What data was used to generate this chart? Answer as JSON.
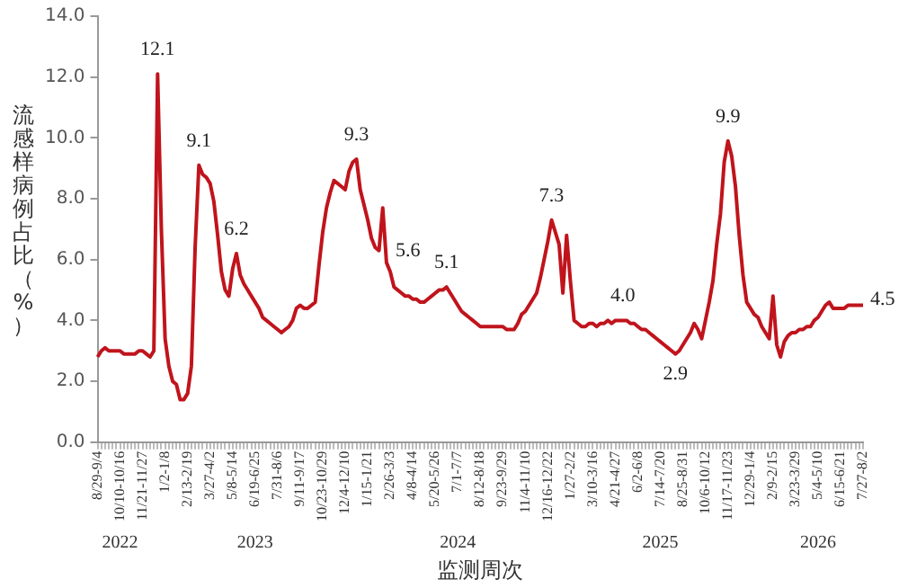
{
  "chart_data": {
    "type": "line",
    "xlabel": "监测周次",
    "ylabel": "流感样病例占比（%）",
    "categories": [
      "8/29-9/4",
      null,
      null,
      null,
      null,
      null,
      "10/10-10/16",
      null,
      null,
      null,
      null,
      null,
      "11/21-11/27",
      null,
      null,
      null,
      null,
      null,
      "1/2-1/8",
      null,
      null,
      null,
      null,
      null,
      "2/13-2/19",
      null,
      null,
      null,
      null,
      null,
      "3/27-4/2",
      null,
      null,
      null,
      null,
      null,
      "5/8-5/14",
      null,
      null,
      null,
      null,
      null,
      "6/19-6/25",
      null,
      null,
      null,
      null,
      null,
      "7/31-8/6",
      null,
      null,
      null,
      null,
      null,
      "9/11-9/17",
      null,
      null,
      null,
      null,
      null,
      "10/23-10/29",
      null,
      null,
      null,
      null,
      null,
      "12/4-12/10",
      null,
      null,
      null,
      null,
      null,
      "1/15-1/21",
      null,
      null,
      null,
      null,
      null,
      "2/26-3/3",
      null,
      null,
      null,
      null,
      null,
      "4/8-4/14",
      null,
      null,
      null,
      null,
      null,
      "5/20-5/26",
      null,
      null,
      null,
      null,
      null,
      "7/1-7/7",
      null,
      null,
      null,
      null,
      null,
      "8/12-8/18",
      null,
      null,
      null,
      null,
      null,
      "9/23-9/29",
      null,
      null,
      null,
      null,
      null,
      "11/4-11/10",
      null,
      null,
      null,
      null,
      null,
      "12/16-12/22",
      null,
      null,
      null,
      null,
      null,
      "1/27-2/2",
      null,
      null,
      null,
      null,
      null,
      "3/10-3/16",
      null,
      null,
      null,
      null,
      null,
      "4/21-4/27",
      null,
      null,
      null,
      null,
      null,
      "6/2-6/8",
      null,
      null,
      null,
      null,
      null,
      "7/14-7/20",
      null,
      null,
      null,
      null,
      null,
      "8/25-8/31",
      null,
      null,
      null,
      null,
      null,
      "10/6-10/12",
      null,
      null,
      null,
      null,
      null,
      "11/17-11/23",
      null,
      null,
      null,
      null,
      null,
      "12/29-1/4",
      null,
      null,
      null,
      null,
      null,
      "2/9-2/15",
      null,
      null,
      null,
      null,
      null,
      "3/23-3/29",
      null,
      null,
      null,
      null,
      null,
      "5/4-5/10",
      null,
      null,
      null,
      null,
      null,
      "6/15-6/21",
      null,
      null,
      null,
      null,
      null,
      "7/27-8/2"
    ],
    "values": [
      2.8,
      3.0,
      3.1,
      3.0,
      3.0,
      3.0,
      3.0,
      2.9,
      2.9,
      2.9,
      2.9,
      3.0,
      3.0,
      2.9,
      2.8,
      3.0,
      12.1,
      7.0,
      3.4,
      2.5,
      2.0,
      1.9,
      1.4,
      1.4,
      1.6,
      2.5,
      6.4,
      9.1,
      8.8,
      8.7,
      8.5,
      7.9,
      6.8,
      5.6,
      5.0,
      4.8,
      5.7,
      6.2,
      5.5,
      5.2,
      5.0,
      4.8,
      4.6,
      4.4,
      4.1,
      4.0,
      3.9,
      3.8,
      3.7,
      3.6,
      3.7,
      3.8,
      4.0,
      4.4,
      4.5,
      4.4,
      4.4,
      4.5,
      4.6,
      5.8,
      6.9,
      7.7,
      8.2,
      8.6,
      8.5,
      8.4,
      8.3,
      8.9,
      9.2,
      9.3,
      8.3,
      7.8,
      7.3,
      6.7,
      6.4,
      6.3,
      7.7,
      5.9,
      5.6,
      5.1,
      5.0,
      4.9,
      4.8,
      4.8,
      4.7,
      4.7,
      4.6,
      4.6,
      4.7,
      4.8,
      4.9,
      5.0,
      5.0,
      5.1,
      4.9,
      4.7,
      4.5,
      4.3,
      4.2,
      4.1,
      4.0,
      3.9,
      3.8,
      3.8,
      3.8,
      3.8,
      3.8,
      3.8,
      3.8,
      3.7,
      3.7,
      3.7,
      3.9,
      4.2,
      4.3,
      4.5,
      4.7,
      4.9,
      5.4,
      6.0,
      6.6,
      7.3,
      6.9,
      6.5,
      4.9,
      6.8,
      5.3,
      4.0,
      3.9,
      3.8,
      3.8,
      3.9,
      3.9,
      3.8,
      3.9,
      3.9,
      4.0,
      3.9,
      4.0,
      4.0,
      4.0,
      4.0,
      3.9,
      3.9,
      3.8,
      3.7,
      3.7,
      3.6,
      3.5,
      3.4,
      3.3,
      3.2,
      3.1,
      3.0,
      2.9,
      3.0,
      3.2,
      3.4,
      3.6,
      3.9,
      3.7,
      3.4,
      4.0,
      4.6,
      5.3,
      6.5,
      7.5,
      9.2,
      9.9,
      9.4,
      8.4,
      6.8,
      5.5,
      4.6,
      4.4,
      4.2,
      4.1,
      3.8,
      3.6,
      3.4,
      4.8,
      3.2,
      2.8,
      3.3,
      3.5,
      3.6,
      3.6,
      3.7,
      3.7,
      3.8,
      3.8,
      4.0,
      4.1,
      4.3,
      4.5,
      4.6,
      4.4,
      4.4,
      4.4,
      4.4,
      4.5,
      4.5,
      4.5,
      4.5,
      4.5
    ],
    "value_labels": [
      null,
      null,
      null,
      null,
      null,
      null,
      null,
      null,
      null,
      null,
      null,
      null,
      null,
      null,
      null,
      null,
      "12.1",
      null,
      null,
      null,
      null,
      null,
      null,
      null,
      null,
      null,
      null,
      "9.1",
      null,
      null,
      null,
      null,
      null,
      null,
      null,
      null,
      null,
      "6.2",
      null,
      null,
      null,
      null,
      null,
      null,
      null,
      null,
      null,
      null,
      null,
      null,
      null,
      null,
      null,
      null,
      null,
      null,
      null,
      null,
      null,
      null,
      null,
      null,
      null,
      null,
      null,
      null,
      null,
      null,
      null,
      "9.3",
      null,
      null,
      null,
      null,
      null,
      null,
      null,
      null,
      "5.6",
      null,
      null,
      null,
      null,
      null,
      null,
      null,
      null,
      null,
      null,
      null,
      null,
      null,
      null,
      "5.1",
      null,
      null,
      null,
      null,
      null,
      null,
      null,
      null,
      null,
      null,
      null,
      null,
      null,
      null,
      null,
      null,
      null,
      null,
      null,
      null,
      null,
      null,
      null,
      null,
      null,
      null,
      null,
      "7.3",
      null,
      null,
      null,
      null,
      null,
      null,
      null,
      null,
      null,
      null,
      null,
      null,
      null,
      null,
      null,
      null,
      null,
      null,
      "4.0",
      null,
      null,
      null,
      null,
      null,
      null,
      null,
      null,
      null,
      null,
      null,
      null,
      null,
      "2.9",
      null,
      null,
      null,
      null,
      null,
      null,
      null,
      null,
      null,
      null,
      null,
      null,
      null,
      "9.9",
      null,
      null,
      null,
      null,
      null,
      null,
      null,
      null,
      null,
      null,
      null,
      null,
      null,
      null,
      null,
      null,
      null,
      null,
      null,
      null,
      null,
      null,
      null,
      null,
      null,
      null,
      null,
      null,
      null,
      null,
      null,
      null,
      null,
      null,
      null,
      "4.5"
    ],
    "color": "#c0141c",
    "ylim": [
      0,
      14
    ],
    "yticks": [
      {
        "value": 0,
        "label": "0.0"
      },
      {
        "value": 2,
        "label": "2.0"
      },
      {
        "value": 4,
        "label": "4.0"
      },
      {
        "value": 6,
        "label": "6.0"
      },
      {
        "value": 8,
        "label": "8.0"
      },
      {
        "value": 10,
        "label": "10.0"
      },
      {
        "value": 12,
        "label": "12.0"
      },
      {
        "value": 14,
        "label": "14.0"
      }
    ],
    "annotations": [
      "2022",
      "2023",
      "2024",
      "2025",
      "2026"
    ],
    "grid": false,
    "legend": false,
    "marker": "none",
    "line_style": "solid"
  }
}
